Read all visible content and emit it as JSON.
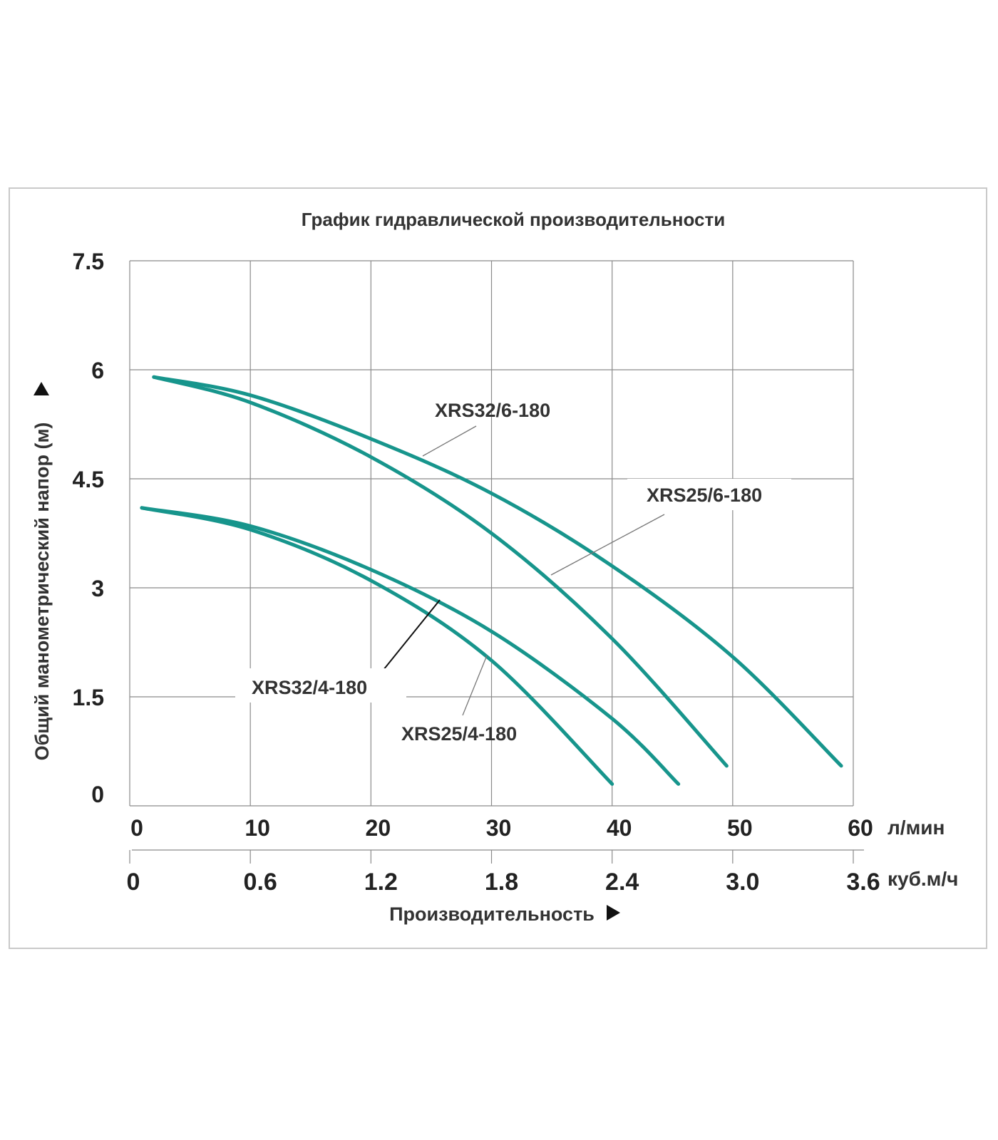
{
  "chart_data": {
    "type": "line",
    "title": "График гидравлической производительности",
    "xlabel": "Производительность",
    "ylabel": "Общий манометрический напор (м)",
    "x_unit": "л/мин",
    "x2_unit": "куб.м/ч",
    "xlim": [
      0,
      60
    ],
    "ylim": [
      0,
      7.5
    ],
    "y_ticks": [
      "0",
      "1.5",
      "3",
      "4.5",
      "6",
      "7.5"
    ],
    "x_ticks": [
      "0",
      "10",
      "20",
      "30",
      "40",
      "50",
      "60"
    ],
    "x2_ticks": [
      "0",
      "0.6",
      "1.2",
      "1.8",
      "2.4",
      "3.0",
      "3.6"
    ],
    "grid": true,
    "series": [
      {
        "name": "XRS32/6-180",
        "x": [
          2,
          10,
          20,
          30,
          40,
          50,
          59
        ],
        "y": [
          5.9,
          5.65,
          5.05,
          4.3,
          3.3,
          2.05,
          0.55
        ]
      },
      {
        "name": "XRS25/6-180",
        "x": [
          2,
          10,
          20,
          30,
          40,
          49.5
        ],
        "y": [
          5.9,
          5.55,
          4.8,
          3.75,
          2.3,
          0.55
        ]
      },
      {
        "name": "XRS32/4-180",
        "x": [
          1,
          10,
          20,
          30,
          40,
          45.5
        ],
        "y": [
          4.1,
          3.85,
          3.25,
          2.4,
          1.2,
          0.3
        ]
      },
      {
        "name": "XRS25/4-180",
        "x": [
          1,
          10,
          20,
          30,
          40
        ],
        "y": [
          4.1,
          3.8,
          3.1,
          2.0,
          0.3
        ]
      }
    ],
    "annotations": [
      "XRS32/6-180",
      "XRS25/6-180",
      "XRS32/4-180",
      "XRS25/4-180"
    ]
  },
  "colors": {
    "curve": "#17958c",
    "grid": "#8a8a8a",
    "frame": "#c9c9c9"
  }
}
